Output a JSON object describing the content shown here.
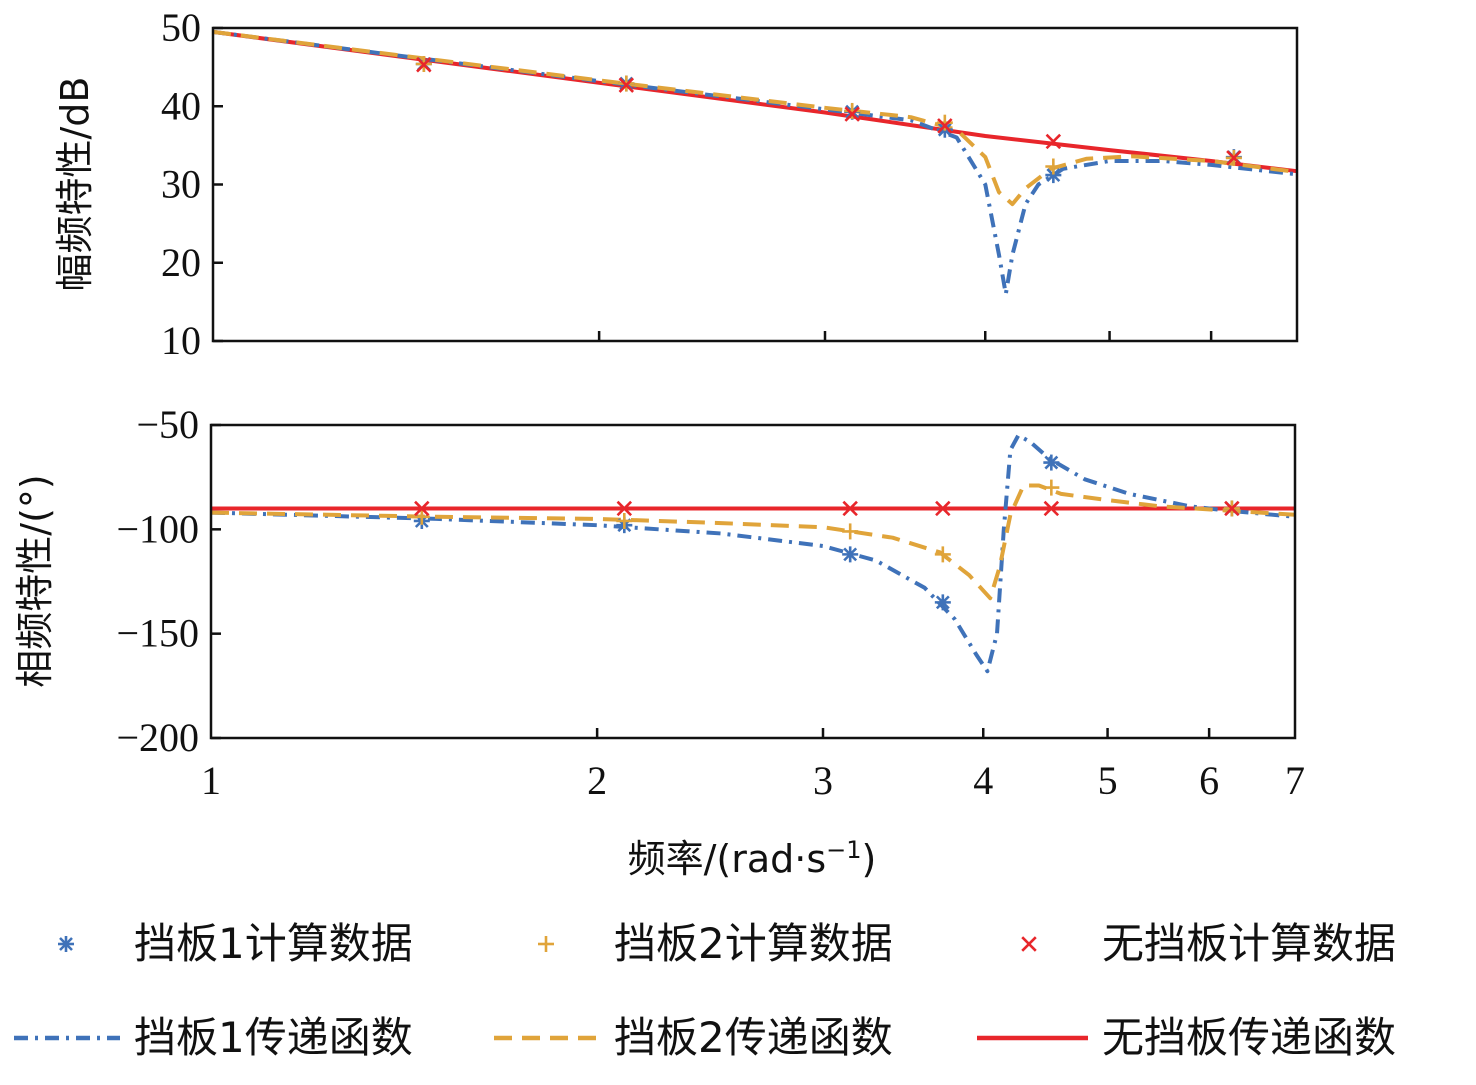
{
  "chart_data": [
    {
      "type": "line",
      "panel": "magnitude",
      "ylabel": "幅频特性/dB",
      "xscale": "log",
      "xlim": [
        1,
        7
      ],
      "ylim": [
        10,
        50
      ],
      "yticks": [
        10,
        20,
        30,
        40,
        50
      ],
      "yticklabels": [
        "10",
        "20",
        "30",
        "40",
        "50"
      ],
      "series": [
        {
          "name": "无挡板传递函数",
          "color": "#e8262b",
          "style": "solid",
          "x": [
            1,
            2,
            3,
            4,
            5,
            6,
            7
          ],
          "y": [
            49.5,
            43.0,
            39.2,
            36.2,
            34.4,
            33.0,
            31.7
          ]
        },
        {
          "name": "挡板1传递函数",
          "color": "#3f72b9",
          "style": "dash-dot",
          "x": [
            1,
            2,
            3,
            3.5,
            3.8,
            4.0,
            4.1,
            4.15,
            4.2,
            4.3,
            4.4,
            4.6,
            5.0,
            5.5,
            6.0,
            7.0
          ],
          "y": [
            49.5,
            43.2,
            39.6,
            38.2,
            36.0,
            30.0,
            21.0,
            16.0,
            21.0,
            27.5,
            30.0,
            32.0,
            33.0,
            33.0,
            32.5,
            31.3
          ]
        },
        {
          "name": "挡板2传递函数",
          "color": "#e0a43a",
          "style": "dashed",
          "x": [
            1,
            2,
            3,
            3.5,
            3.8,
            4.0,
            4.1,
            4.2,
            4.3,
            4.5,
            4.8,
            5.2,
            6.0,
            7.0
          ],
          "y": [
            49.5,
            43.3,
            39.8,
            38.6,
            37.0,
            33.5,
            29.0,
            27.5,
            29.5,
            32.0,
            33.3,
            33.6,
            33.0,
            31.6
          ]
        },
        {
          "name": "挡板1计算数据",
          "marker": "asterisk",
          "color": "#3f72b9",
          "x": [
            1.46,
            2.1,
            3.15,
            3.72,
            4.52,
            6.25
          ],
          "y": [
            45.4,
            42.9,
            39.3,
            37.0,
            31.2,
            33.5
          ]
        },
        {
          "name": "挡板2计算数据",
          "marker": "plus",
          "color": "#e0a43a",
          "x": [
            1.46,
            2.1,
            3.15,
            3.72,
            4.52,
            6.25
          ],
          "y": [
            45.4,
            42.9,
            39.4,
            37.9,
            32.3,
            33.4
          ]
        },
        {
          "name": "无挡板计算数据",
          "marker": "x",
          "color": "#e8262b",
          "x": [
            1.46,
            2.1,
            3.15,
            3.72,
            4.52,
            6.25
          ],
          "y": [
            45.3,
            42.7,
            39.0,
            37.5,
            35.5,
            33.4
          ]
        }
      ]
    },
    {
      "type": "line",
      "panel": "phase",
      "ylabel": "相频特性/(°)",
      "xlabel": "频率/(rad·s",
      "xlabel_sup": "−1",
      "xlabel_tail": ")",
      "xscale": "log",
      "xlim": [
        1,
        7
      ],
      "ylim": [
        -200,
        -50
      ],
      "xticks": [
        1,
        2,
        3,
        4,
        5,
        6,
        7
      ],
      "xticklabels": [
        "1",
        "2",
        "3",
        "4",
        "5",
        "6",
        "7"
      ],
      "yticks": [
        -200,
        -150,
        -100,
        -50
      ],
      "yticklabels": [
        "−200",
        "−150",
        "−100",
        "−50"
      ],
      "series": [
        {
          "name": "无挡板传递函数",
          "color": "#e8262b",
          "style": "solid",
          "x": [
            1,
            7
          ],
          "y": [
            -90,
            -90
          ]
        },
        {
          "name": "挡板1传递函数",
          "color": "#3f72b9",
          "style": "dash-dot",
          "x": [
            1,
            1.5,
            2,
            2.5,
            3,
            3.3,
            3.6,
            3.8,
            3.95,
            4.03,
            4.1,
            4.15,
            4.2,
            4.26,
            4.35,
            4.5,
            4.8,
            5.2,
            5.8,
            6.2,
            7.0
          ],
          "y": [
            -92,
            -95,
            -98,
            -102,
            -108,
            -115,
            -128,
            -143,
            -160,
            -168,
            -150,
            -100,
            -62,
            -55,
            -58,
            -66,
            -76,
            -83,
            -89,
            -91,
            -94
          ]
        },
        {
          "name": "挡板2传递函数",
          "color": "#e0a43a",
          "style": "dashed",
          "x": [
            1,
            1.5,
            2,
            2.5,
            3,
            3.4,
            3.7,
            3.9,
            4.05,
            4.12,
            4.2,
            4.3,
            4.42,
            4.6,
            5.0,
            5.5,
            6.2,
            7.0
          ],
          "y": [
            -92,
            -94,
            -95,
            -97,
            -99,
            -104,
            -111,
            -122,
            -133,
            -118,
            -93,
            -79,
            -79,
            -83,
            -86,
            -89,
            -91,
            -93
          ]
        },
        {
          "name": "挡板1计算数据",
          "marker": "asterisk",
          "color": "#3f72b9",
          "x": [
            1.46,
            2.1,
            3.15,
            3.72,
            4.52,
            6.25
          ],
          "y": [
            -96,
            -98,
            -112,
            -135,
            -68,
            -90
          ]
        },
        {
          "name": "挡板2计算数据",
          "marker": "plus",
          "color": "#e0a43a",
          "x": [
            1.46,
            2.1,
            3.15,
            3.72,
            4.52,
            6.25
          ],
          "y": [
            -94,
            -96,
            -101,
            -112,
            -80,
            -90
          ]
        },
        {
          "name": "无挡板计算数据",
          "marker": "x",
          "color": "#e8262b",
          "x": [
            1.46,
            2.1,
            3.15,
            3.72,
            4.52,
            6.25
          ],
          "y": [
            -90,
            -90,
            -90,
            -90,
            -90,
            -90
          ]
        }
      ]
    }
  ],
  "legend": {
    "placement": "bottom",
    "items": [
      {
        "label": "挡板1计算数据",
        "kind": "marker",
        "marker": "asterisk",
        "color": "#3f72b9"
      },
      {
        "label": "挡板2计算数据",
        "kind": "marker",
        "marker": "plus",
        "color": "#e0a43a"
      },
      {
        "label": "无挡板计算数据",
        "kind": "marker",
        "marker": "x",
        "color": "#e8262b"
      },
      {
        "label": "挡板1传递函数",
        "kind": "line",
        "style": "dash-dot",
        "color": "#3f72b9"
      },
      {
        "label": "挡板2传递函数",
        "kind": "line",
        "style": "dashed",
        "color": "#e0a43a"
      },
      {
        "label": "无挡板传递函数",
        "kind": "line",
        "style": "solid",
        "color": "#e8262b"
      }
    ]
  }
}
